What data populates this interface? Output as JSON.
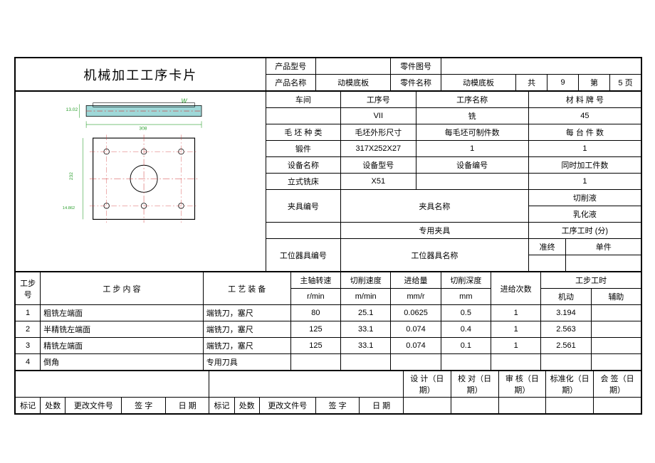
{
  "title": "机械加工工序卡片",
  "header": {
    "product_model_lbl": "产品型号",
    "product_model": "",
    "part_drawing_lbl": "零件图号",
    "part_drawing": "",
    "product_name_lbl": "产品名称",
    "product_name": "动模底板",
    "part_name_lbl": "零件名称",
    "part_name": "动模底板",
    "total_lbl": "共",
    "total_pages": "9",
    "page_lbl": "第",
    "page_no": "5",
    "page_suffix": "页"
  },
  "info": {
    "workshop_lbl": "车间",
    "workshop": "",
    "process_no_lbl": "工序号",
    "process_no": "VII",
    "process_name_lbl": "工序名称",
    "process_name": "铣",
    "material_lbl": "材 料 牌 号",
    "material": "45",
    "blank_type_lbl": "毛 坯 种 类",
    "blank_type": "锻件",
    "blank_dim_lbl": "毛坯外形尺寸",
    "blank_dim": "317X252X27",
    "per_blank_lbl": "每毛坯可制件数",
    "per_blank": "1",
    "per_unit_lbl": "每 台 件 数",
    "per_unit": "1",
    "equip_name_lbl": "设备名称",
    "equip_name": "立式铣床",
    "equip_model_lbl": "设备型号",
    "equip_model": "X51",
    "equip_no_lbl": "设备编号",
    "equip_no": "",
    "concurrent_lbl": "同时加工件数",
    "concurrent": "1",
    "fixture_no_lbl": "夹具编号",
    "fixture_no": "",
    "fixture_name_lbl": "夹具名称",
    "fixture_name": "专用夹具",
    "coolant_lbl": "切削液",
    "coolant": "乳化液",
    "tool_no_lbl": "工位器具编号",
    "tool_no": "",
    "tool_name_lbl": "工位器具名称",
    "tool_name": "",
    "process_time_lbl": "工序工时 (分)",
    "prep_lbl": "准终",
    "unit_lbl": "单件"
  },
  "step_header": {
    "step_no": "工步号",
    "content": "工    步    内    容",
    "equipment": "工 艺 装 备",
    "spindle": "主轴转速",
    "spindle_u": "r/min",
    "cut_speed": "切削速度",
    "cut_speed_u": "m/min",
    "feed": "进给量",
    "feed_u": "mm/r",
    "cut_depth": "切削深度",
    "cut_depth_u": "mm",
    "feed_count": "进给次数",
    "step_time": "工步工时",
    "machine": "机动",
    "aux": "辅助"
  },
  "steps": [
    {
      "no": "1",
      "content": "粗铣左端面",
      "equip": "端铣刀，塞尺",
      "spindle": "80",
      "speed": "25.1",
      "feed": "0.0625",
      "depth": "0.5",
      "count": "1",
      "machine": "3.194",
      "aux": ""
    },
    {
      "no": "2",
      "content": "半精铣左端面",
      "equip": "端铣刀，塞尺",
      "spindle": "125",
      "speed": "33.1",
      "feed": "0.074",
      "depth": "0.4",
      "count": "1",
      "machine": "2.563",
      "aux": ""
    },
    {
      "no": "3",
      "content": "精铣左端面",
      "equip": "端铣刀，塞尺",
      "spindle": "125",
      "speed": "33.1",
      "feed": "0.074",
      "depth": "0.1",
      "count": "1",
      "machine": "2.561",
      "aux": ""
    },
    {
      "no": "4",
      "content": "倒角",
      "equip": "专用刀具",
      "spindle": "",
      "speed": "",
      "feed": "",
      "depth": "",
      "count": "",
      "machine": "",
      "aux": ""
    }
  ],
  "footer": {
    "design": "设 计（日 期）",
    "check": "校 对（日期）",
    "review": "审 核（日期）",
    "standard": "标准化（日期）",
    "sign": "会 签（日期）",
    "mark": "标记",
    "loc": "处数",
    "change": "更改文件号",
    "sig": "签  字",
    "date": "日  期"
  },
  "drawing": {
    "top_stroke": "#000",
    "top_fill": "#9fd8d8",
    "plate_stroke": "#000",
    "centerline": "#d03030",
    "dim_color": "#2ea030"
  }
}
